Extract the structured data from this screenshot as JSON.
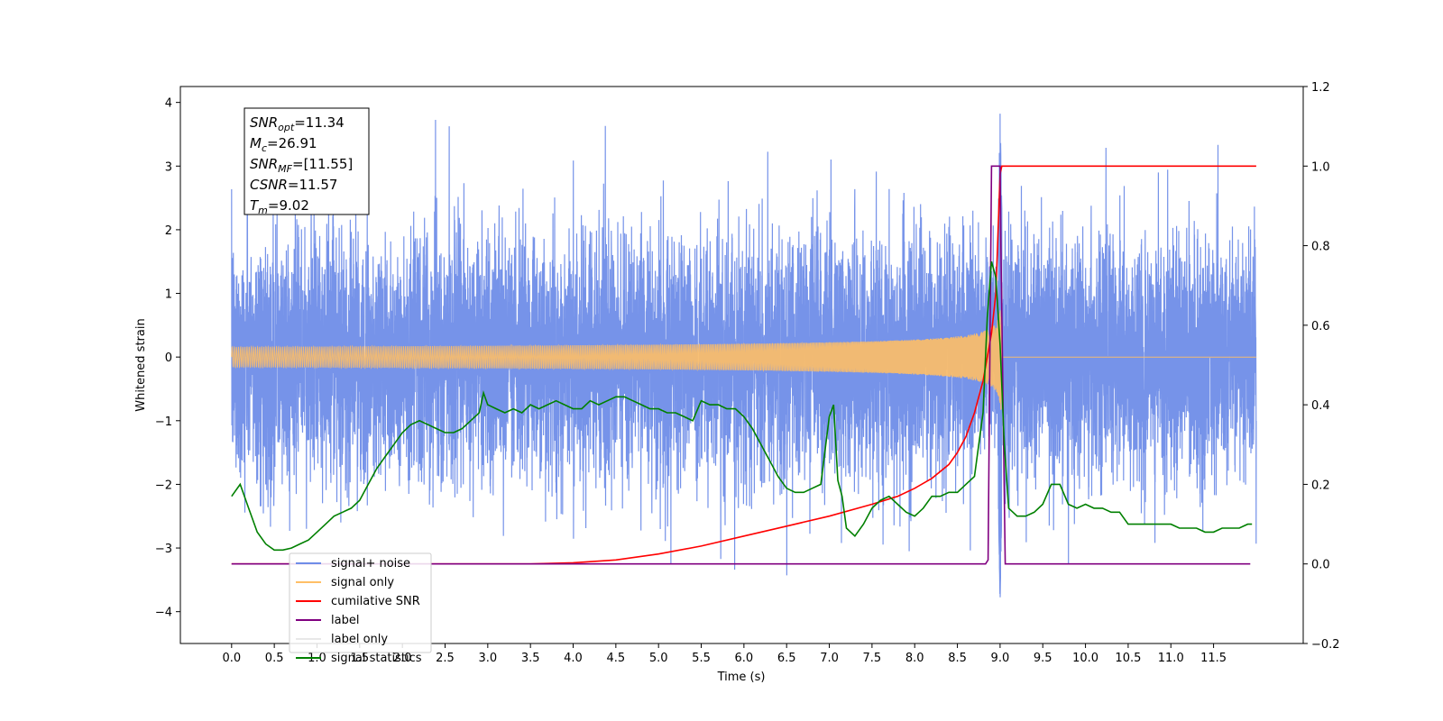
{
  "chart_data": {
    "type": "line",
    "title": "",
    "xlabel": "Time (s)",
    "ylabel": "Whitened strain",
    "xlim": [
      -0.6,
      12.55
    ],
    "ylim": [
      -4.5,
      4.25
    ],
    "y2lim": [
      -0.2,
      1.2
    ],
    "xticks": [
      "0.0",
      "0.5",
      "1.0",
      "1.5",
      "2.0",
      "2.5",
      "3.0",
      "3.5",
      "4.0",
      "4.5",
      "5.0",
      "5.5",
      "6.0",
      "6.5",
      "7.0",
      "7.5",
      "8.0",
      "8.5",
      "9.0",
      "9.5",
      "10.0",
      "10.5",
      "11.0",
      "11.5"
    ],
    "yticks": [
      "4",
      "3",
      "2",
      "1",
      "0",
      "−1",
      "−2",
      "−3",
      "−4"
    ],
    "y2ticks": [
      "1.2",
      "1.0",
      "0.8",
      "0.6",
      "0.4",
      "0.2",
      "0.0",
      "−0.2"
    ],
    "grid": false,
    "legend_position": "lower-left",
    "annotation": {
      "lines": [
        {
          "sym": "SNR",
          "sub": "opt",
          "value": "=11.34"
        },
        {
          "sym": "M",
          "sub": "c",
          "value": "=26.91"
        },
        {
          "sym": "SNR",
          "sub": "MF",
          "value": "=[11.55]"
        },
        {
          "sym": "CSNR",
          "sub": "",
          "value": "=11.57"
        },
        {
          "sym": "T",
          "sub": "m",
          "value": "=9.02"
        }
      ]
    },
    "series": [
      {
        "name": "signal+ noise",
        "color": "#6f8de8",
        "axis": "left",
        "kind": "noise",
        "x_range": [
          0.0,
          12.0
        ],
        "std": 0.95,
        "peak_time": 9.0,
        "peak_value": 3.85
      },
      {
        "name": "signal only",
        "color": "#ffbf66",
        "axis": "left",
        "kind": "chirp",
        "x_range": [
          0.0,
          12.0
        ],
        "merger_time": 9.02,
        "peak_amplitude": 1.1
      },
      {
        "name": "cumilative SNR",
        "color": "#ff0000",
        "axis": "right",
        "x": [
          0.0,
          3.0,
          3.5,
          4.0,
          4.5,
          5.0,
          5.5,
          6.0,
          6.5,
          7.0,
          7.5,
          7.8,
          8.0,
          8.2,
          8.4,
          8.5,
          8.6,
          8.7,
          8.8,
          8.9,
          8.95,
          9.0,
          9.02,
          12.0
        ],
        "values": [
          0.0,
          0.0,
          0.0,
          0.003,
          0.01,
          0.025,
          0.045,
          0.07,
          0.095,
          0.12,
          0.15,
          0.17,
          0.19,
          0.215,
          0.25,
          0.28,
          0.32,
          0.38,
          0.46,
          0.58,
          0.68,
          0.98,
          1.0,
          1.0
        ]
      },
      {
        "name": "label",
        "color": "#800080",
        "axis": "right",
        "x": [
          0.0,
          8.83,
          8.86,
          8.9,
          9.0,
          9.01,
          9.06,
          11.93
        ],
        "values": [
          0.0,
          0.0,
          0.01,
          1.0,
          1.0,
          0.8,
          0.0,
          0.0
        ]
      },
      {
        "name": "label only",
        "color": "#e8e8e8",
        "axis": "right",
        "x": [],
        "values": []
      },
      {
        "name": "signal statistics",
        "color": "#008000",
        "axis": "right",
        "x": [
          0.0,
          0.1,
          0.2,
          0.3,
          0.4,
          0.5,
          0.6,
          0.7,
          0.8,
          0.9,
          1.0,
          1.1,
          1.2,
          1.3,
          1.4,
          1.5,
          1.6,
          1.7,
          1.8,
          1.9,
          2.0,
          2.1,
          2.2,
          2.3,
          2.4,
          2.5,
          2.6,
          2.7,
          2.8,
          2.9,
          2.95,
          3.0,
          3.1,
          3.2,
          3.3,
          3.4,
          3.5,
          3.6,
          3.7,
          3.8,
          3.9,
          4.0,
          4.1,
          4.2,
          4.3,
          4.4,
          4.5,
          4.6,
          4.7,
          4.8,
          4.9,
          5.0,
          5.1,
          5.2,
          5.3,
          5.4,
          5.5,
          5.6,
          5.7,
          5.8,
          5.9,
          6.0,
          6.1,
          6.2,
          6.3,
          6.4,
          6.5,
          6.6,
          6.7,
          6.8,
          6.9,
          7.0,
          7.05,
          7.1,
          7.15,
          7.2,
          7.3,
          7.4,
          7.5,
          7.6,
          7.7,
          7.8,
          7.9,
          8.0,
          8.1,
          8.2,
          8.3,
          8.4,
          8.5,
          8.6,
          8.7,
          8.8,
          8.85,
          8.9,
          8.95,
          9.0,
          9.05,
          9.1,
          9.2,
          9.3,
          9.4,
          9.5,
          9.6,
          9.7,
          9.8,
          9.9,
          10.0,
          10.1,
          10.2,
          10.3,
          10.4,
          10.5,
          10.6,
          10.7,
          10.8,
          10.9,
          11.0,
          11.1,
          11.2,
          11.3,
          11.4,
          11.5,
          11.6,
          11.7,
          11.8,
          11.9,
          11.95
        ],
        "values": [
          0.17,
          0.2,
          0.14,
          0.08,
          0.05,
          0.035,
          0.035,
          0.04,
          0.05,
          0.06,
          0.08,
          0.1,
          0.12,
          0.13,
          0.14,
          0.16,
          0.2,
          0.24,
          0.27,
          0.3,
          0.33,
          0.35,
          0.36,
          0.35,
          0.34,
          0.33,
          0.33,
          0.34,
          0.36,
          0.38,
          0.43,
          0.4,
          0.39,
          0.38,
          0.39,
          0.38,
          0.4,
          0.39,
          0.4,
          0.41,
          0.4,
          0.39,
          0.39,
          0.41,
          0.4,
          0.41,
          0.42,
          0.42,
          0.41,
          0.4,
          0.39,
          0.39,
          0.38,
          0.38,
          0.37,
          0.36,
          0.41,
          0.4,
          0.4,
          0.39,
          0.39,
          0.37,
          0.34,
          0.3,
          0.26,
          0.22,
          0.19,
          0.18,
          0.18,
          0.19,
          0.2,
          0.37,
          0.4,
          0.21,
          0.17,
          0.09,
          0.07,
          0.1,
          0.14,
          0.16,
          0.17,
          0.15,
          0.13,
          0.12,
          0.14,
          0.17,
          0.17,
          0.18,
          0.18,
          0.2,
          0.22,
          0.38,
          0.62,
          0.76,
          0.72,
          0.55,
          0.3,
          0.14,
          0.12,
          0.12,
          0.13,
          0.15,
          0.2,
          0.2,
          0.15,
          0.14,
          0.15,
          0.14,
          0.14,
          0.13,
          0.13,
          0.1,
          0.1,
          0.1,
          0.1,
          0.1,
          0.1,
          0.09,
          0.09,
          0.09,
          0.08,
          0.08,
          0.09,
          0.09,
          0.09,
          0.1,
          0.1
        ]
      }
    ]
  }
}
